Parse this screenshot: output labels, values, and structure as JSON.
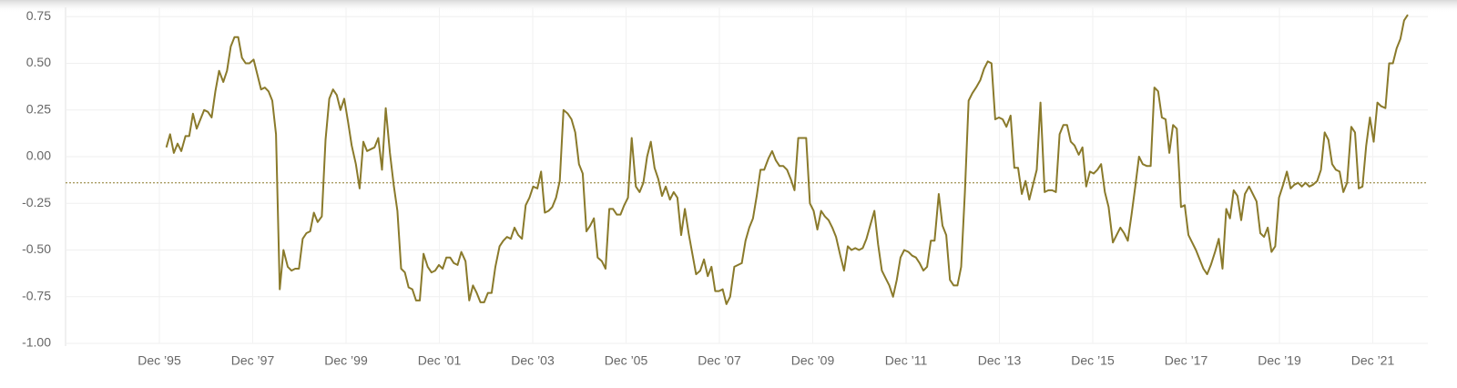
{
  "chart_data": {
    "type": "line",
    "color": "#8a7a2b",
    "grid": true,
    "reference_line": -0.14,
    "xlim": [
      1993.91,
      2023.1
    ],
    "ylim": [
      -1,
      0.8
    ],
    "xticks": [
      {
        "value": 1995.92,
        "label": "Dec ’95"
      },
      {
        "value": 1997.92,
        "label": "Dec ’97"
      },
      {
        "value": 1999.92,
        "label": "Dec ’99"
      },
      {
        "value": 2001.92,
        "label": "Dec ’01"
      },
      {
        "value": 2003.92,
        "label": "Dec ’03"
      },
      {
        "value": 2005.92,
        "label": "Dec ’05"
      },
      {
        "value": 2007.92,
        "label": "Dec ’07"
      },
      {
        "value": 2009.92,
        "label": "Dec ’09"
      },
      {
        "value": 2011.92,
        "label": "Dec ’11"
      },
      {
        "value": 2013.92,
        "label": "Dec ’13"
      },
      {
        "value": 2015.92,
        "label": "Dec ’15"
      },
      {
        "value": 2017.92,
        "label": "Dec ’17"
      },
      {
        "value": 2019.92,
        "label": "Dec ’19"
      },
      {
        "value": 2021.92,
        "label": "Dec ’21"
      }
    ],
    "yticks": [
      {
        "value": -1,
        "label": "-1.00"
      },
      -0.75,
      {
        "value": -0.5,
        "label": "-0.50"
      },
      -0.25,
      {
        "value": 0,
        "label": "0.00"
      },
      0.25,
      {
        "value": 0.5,
        "label": "0.50"
      },
      0.75
    ],
    "x": [
      1996.07,
      1996.15,
      1996.23,
      1996.31,
      1996.39,
      1996.48,
      1996.56,
      1996.64,
      1996.72,
      1996.8,
      1996.88,
      1996.96,
      1997.04,
      1997.12,
      1997.2,
      1997.29,
      1997.37,
      1997.45,
      1997.53,
      1997.61,
      1997.69,
      1997.77,
      1997.85,
      1997.94,
      1998.02,
      1998.1,
      1998.18,
      1998.26,
      1998.34,
      1998.42,
      1998.5,
      1998.58,
      1998.67,
      1998.75,
      1998.83,
      1998.91,
      1998.99,
      1999.07,
      1999.15,
      1999.23,
      1999.31,
      1999.4,
      1999.48,
      1999.56,
      1999.64,
      1999.72,
      1999.8,
      1999.88,
      1999.96,
      2000.04,
      2000.13,
      2000.21,
      2000.29,
      2000.37,
      2000.45,
      2000.53,
      2000.61,
      2000.69,
      2000.77,
      2000.86,
      2000.94,
      2001.02,
      2001.1,
      2001.18,
      2001.26,
      2001.34,
      2001.42,
      2001.5,
      2001.58,
      2001.67,
      2001.75,
      2001.83,
      2001.91,
      2001.99,
      2002.07,
      2002.15,
      2002.23,
      2002.31,
      2002.39,
      2002.48,
      2002.56,
      2002.64,
      2002.72,
      2002.8,
      2002.88,
      2002.96,
      2003.04,
      2003.12,
      2003.21,
      2003.29,
      2003.37,
      2003.45,
      2003.53,
      2003.61,
      2003.69,
      2003.77,
      2003.85,
      2003.93,
      2004.02,
      2004.1,
      2004.18,
      2004.26,
      2004.34,
      2004.42,
      2004.5,
      2004.58,
      2004.67,
      2004.75,
      2004.83,
      2004.91,
      2004.99,
      2005.07,
      2005.15,
      2005.23,
      2005.31,
      2005.4,
      2005.48,
      2005.56,
      2005.64,
      2005.72,
      2005.8,
      2005.88,
      2005.96,
      2006.04,
      2006.13,
      2006.21,
      2006.29,
      2006.37,
      2006.45,
      2006.53,
      2006.61,
      2006.69,
      2006.77,
      2006.86,
      2006.94,
      2007.02,
      2007.1,
      2007.18,
      2007.26,
      2007.34,
      2007.42,
      2007.51,
      2007.59,
      2007.67,
      2007.75,
      2007.83,
      2007.91,
      2007.99,
      2008.07,
      2008.15,
      2008.24,
      2008.32,
      2008.4,
      2008.48,
      2008.56,
      2008.64,
      2008.72,
      2008.8,
      2008.88,
      2008.97,
      2009.05,
      2009.13,
      2009.21,
      2009.29,
      2009.37,
      2009.45,
      2009.53,
      2009.61,
      2009.7,
      2009.78,
      2009.86,
      2009.94,
      2010.02,
      2010.1,
      2010.18,
      2010.26,
      2010.34,
      2010.42,
      2010.51,
      2010.59,
      2010.67,
      2010.75,
      2010.83,
      2010.91,
      2010.99,
      2011.07,
      2011.16,
      2011.24,
      2011.32,
      2011.4,
      2011.48,
      2011.56,
      2011.64,
      2011.72,
      2011.8,
      2011.88,
      2011.97,
      2012.05,
      2012.13,
      2012.21,
      2012.29,
      2012.37,
      2012.45,
      2012.53,
      2012.62,
      2012.7,
      2012.78,
      2012.86,
      2012.94,
      2013.02,
      2013.1,
      2013.18,
      2013.26,
      2013.34,
      2013.42,
      2013.51,
      2013.59,
      2013.67,
      2013.75,
      2013.83,
      2013.91,
      2013.99,
      2014.07,
      2014.16,
      2014.24,
      2014.32,
      2014.4,
      2014.48,
      2014.56,
      2014.64,
      2014.72,
      2014.8,
      2014.89,
      2014.97,
      2015.05,
      2015.13,
      2015.21,
      2015.29,
      2015.37,
      2015.45,
      2015.53,
      2015.62,
      2015.7,
      2015.78,
      2015.86,
      2015.94,
      2016.02,
      2016.1,
      2016.18,
      2016.26,
      2016.35,
      2016.43,
      2016.51,
      2016.59,
      2016.67,
      2016.75,
      2016.83,
      2016.91,
      2016.99,
      2017.08,
      2017.16,
      2017.24,
      2017.32,
      2017.4,
      2017.48,
      2017.56,
      2017.64,
      2017.72,
      2017.81,
      2017.89,
      2017.97,
      2018.05,
      2018.13,
      2018.21,
      2018.29,
      2018.37,
      2018.45,
      2018.54,
      2018.62,
      2018.7,
      2018.78,
      2018.86,
      2018.94,
      2019.02,
      2019.1,
      2019.18,
      2019.27,
      2019.35,
      2019.43,
      2019.51,
      2019.59,
      2019.67,
      2019.75,
      2019.83,
      2019.91,
      2020.0,
      2020.08,
      2020.16,
      2020.24,
      2020.32,
      2020.4,
      2020.48,
      2020.56,
      2020.64,
      2020.73,
      2020.81,
      2020.89,
      2020.97,
      2021.05,
      2021.13,
      2021.21,
      2021.29,
      2021.37,
      2021.46,
      2021.54,
      2021.62,
      2021.7,
      2021.78,
      2021.86,
      2021.94,
      2022.02,
      2022.1,
      2022.19,
      2022.27,
      2022.35,
      2022.43,
      2022.51,
      2022.59,
      2022.67
    ],
    "values": [
      0.05,
      0.12,
      0.02,
      0.07,
      0.03,
      0.11,
      0.11,
      0.23,
      0.15,
      0.2,
      0.25,
      0.24,
      0.21,
      0.35,
      0.46,
      0.4,
      0.46,
      0.59,
      0.64,
      0.64,
      0.53,
      0.5,
      0.5,
      0.52,
      0.44,
      0.36,
      0.37,
      0.35,
      0.3,
      0.12,
      -0.71,
      -0.5,
      -0.59,
      -0.61,
      -0.6,
      -0.6,
      -0.44,
      -0.41,
      -0.4,
      -0.3,
      -0.35,
      -0.32,
      0.09,
      0.31,
      0.36,
      0.33,
      0.25,
      0.31,
      0.19,
      0.06,
      -0.04,
      -0.17,
      0.08,
      0.03,
      0.04,
      0.05,
      0.1,
      -0.07,
      0.26,
      0.02,
      -0.15,
      -0.29,
      -0.6,
      -0.62,
      -0.7,
      -0.71,
      -0.77,
      -0.77,
      -0.52,
      -0.59,
      -0.62,
      -0.61,
      -0.58,
      -0.6,
      -0.54,
      -0.54,
      -0.57,
      -0.58,
      -0.51,
      -0.56,
      -0.77,
      -0.69,
      -0.73,
      -0.78,
      -0.78,
      -0.73,
      -0.73,
      -0.59,
      -0.48,
      -0.45,
      -0.43,
      -0.44,
      -0.38,
      -0.42,
      -0.44,
      -0.26,
      -0.22,
      -0.16,
      -0.17,
      -0.08,
      -0.3,
      -0.29,
      -0.27,
      -0.22,
      -0.13,
      0.25,
      0.23,
      0.2,
      0.13,
      -0.04,
      -0.09,
      -0.4,
      -0.37,
      -0.33,
      -0.54,
      -0.56,
      -0.6,
      -0.28,
      -0.28,
      -0.31,
      -0.31,
      -0.26,
      -0.22,
      0.1,
      -0.16,
      -0.19,
      -0.14,
      0.0,
      0.08,
      -0.06,
      -0.12,
      -0.21,
      -0.16,
      -0.23,
      -0.19,
      -0.22,
      -0.42,
      -0.28,
      -0.41,
      -0.52,
      -0.63,
      -0.61,
      -0.55,
      -0.64,
      -0.59,
      -0.72,
      -0.72,
      -0.71,
      -0.79,
      -0.75,
      -0.59,
      -0.58,
      -0.57,
      -0.45,
      -0.38,
      -0.33,
      -0.21,
      -0.07,
      -0.07,
      -0.01,
      0.03,
      -0.02,
      -0.05,
      -0.05,
      -0.07,
      -0.12,
      -0.18,
      0.1,
      0.1,
      0.1,
      -0.25,
      -0.29,
      -0.39,
      -0.29,
      -0.32,
      -0.34,
      -0.38,
      -0.43,
      -0.53,
      -0.61,
      -0.48,
      -0.5,
      -0.49,
      -0.5,
      -0.49,
      -0.44,
      -0.36,
      -0.29,
      -0.47,
      -0.61,
      -0.65,
      -0.69,
      -0.75,
      -0.66,
      -0.54,
      -0.5,
      -0.51,
      -0.53,
      -0.54,
      -0.57,
      -0.61,
      -0.59,
      -0.45,
      -0.45,
      -0.2,
      -0.37,
      -0.42,
      -0.66,
      -0.69,
      -0.69,
      -0.59,
      -0.19,
      0.3,
      0.34,
      0.37,
      0.41,
      0.47,
      0.51,
      0.5,
      0.2,
      0.21,
      0.2,
      0.16,
      0.22,
      -0.06,
      -0.06,
      -0.2,
      -0.13,
      -0.23,
      -0.15,
      -0.07,
      0.29,
      -0.19,
      -0.18,
      -0.18,
      -0.19,
      0.12,
      0.17,
      0.17,
      0.08,
      0.06,
      0.01,
      0.05,
      -0.16,
      -0.08,
      -0.09,
      -0.07,
      -0.04,
      -0.19,
      -0.27,
      -0.46,
      -0.42,
      -0.38,
      -0.41,
      -0.45,
      -0.31,
      -0.16,
      0.0,
      -0.04,
      -0.05,
      -0.05,
      0.37,
      0.35,
      0.21,
      0.2,
      0.02,
      0.17,
      0.15,
      -0.27,
      -0.26,
      -0.42,
      -0.46,
      -0.5,
      -0.55,
      -0.6,
      -0.63,
      -0.58,
      -0.51,
      -0.44,
      -0.6,
      -0.28,
      -0.33,
      -0.18,
      -0.21,
      -0.34,
      -0.2,
      -0.16,
      -0.2,
      -0.24,
      -0.41,
      -0.43,
      -0.38,
      -0.51,
      -0.48,
      -0.22,
      -0.15,
      -0.08,
      -0.17,
      -0.15,
      -0.14,
      -0.16,
      -0.14,
      -0.16,
      -0.15,
      -0.13,
      -0.07,
      0.13,
      0.09,
      -0.04,
      -0.07,
      -0.08,
      -0.19,
      -0.14,
      0.16,
      0.13,
      -0.17,
      -0.16,
      0.06,
      0.21,
      0.08,
      0.29,
      0.27,
      0.26,
      0.5,
      0.5,
      0.58,
      0.63,
      0.73,
      0.76
    ]
  }
}
